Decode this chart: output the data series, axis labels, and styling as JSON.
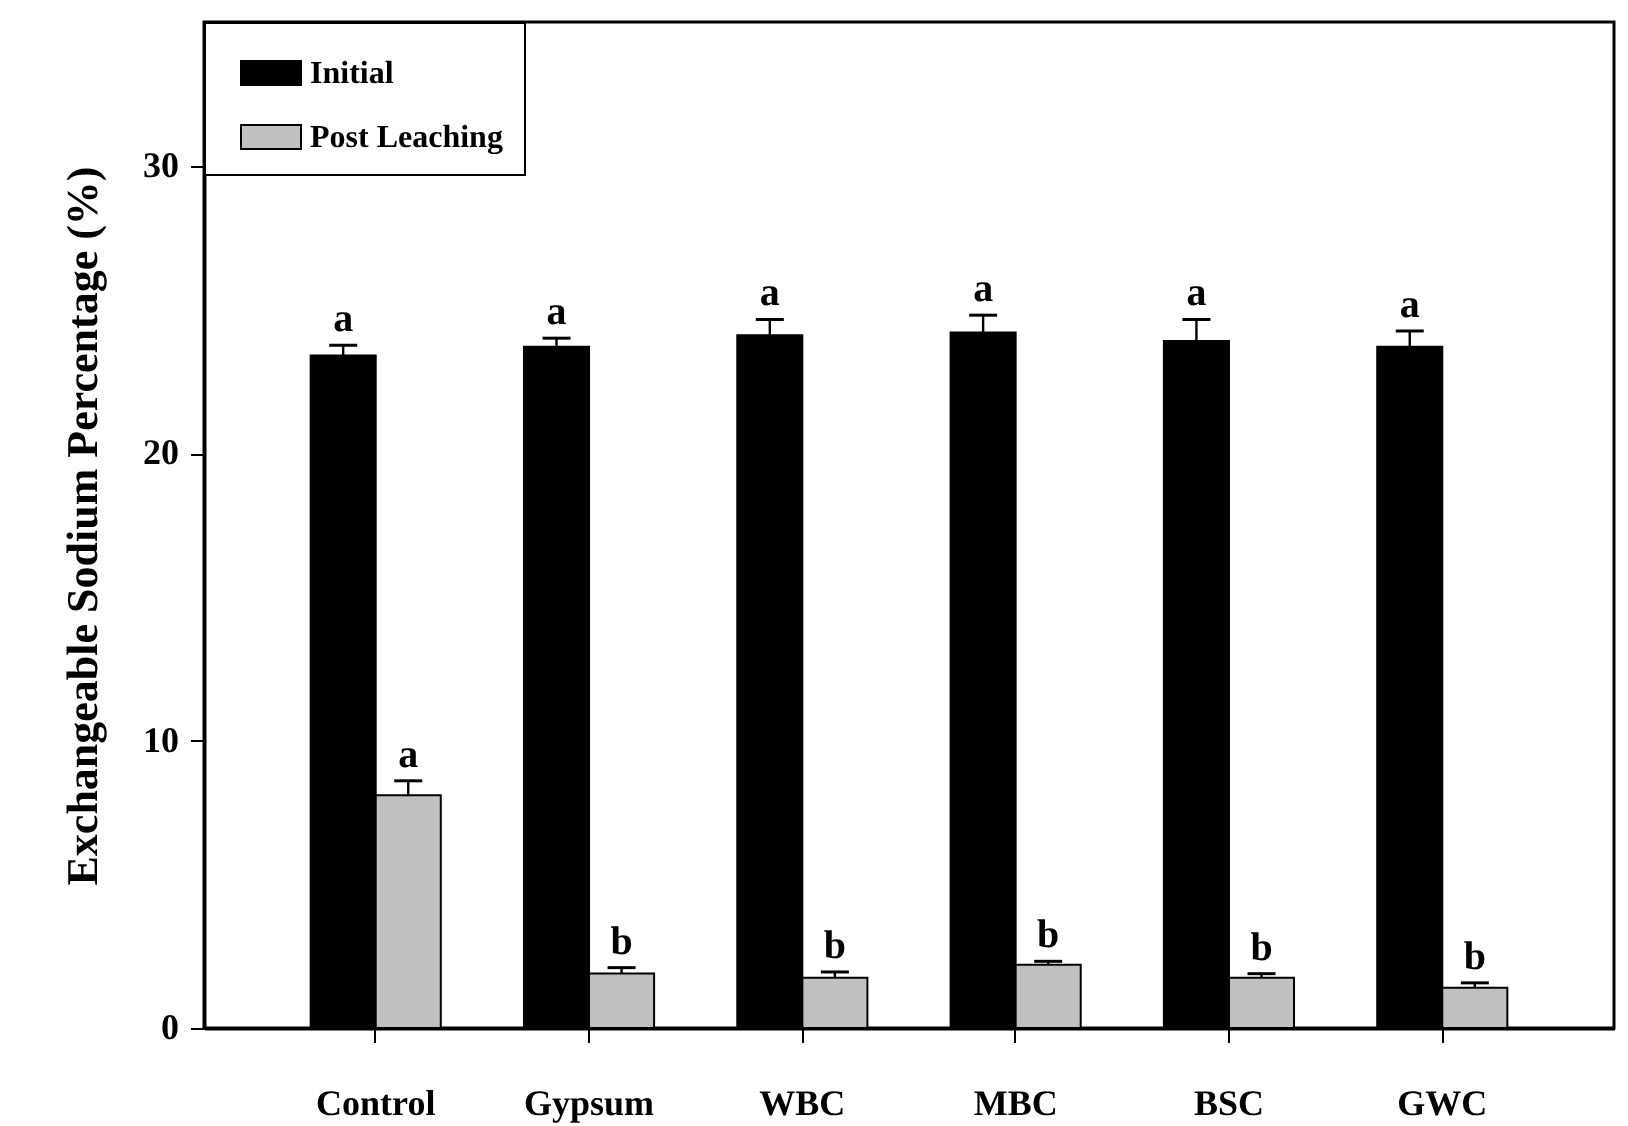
{
  "chart_data": {
    "type": "bar",
    "ylabel": "Exchangeable Sodium Percentage (%)",
    "categories": [
      "Control",
      "Gypsum",
      "WBC",
      "MBC",
      "BSC",
      "GWC"
    ],
    "series": [
      {
        "name": "Initial",
        "color": "#000000",
        "values": [
          23.4,
          23.7,
          24.1,
          24.2,
          23.9,
          23.7
        ],
        "errors": [
          0.35,
          0.3,
          0.55,
          0.6,
          0.75,
          0.55
        ],
        "value_labels": [
          "a",
          "a",
          "a",
          "a",
          "a",
          "a"
        ]
      },
      {
        "name": "Post Leaching",
        "color": "#c0c0c0",
        "values": [
          8.1,
          1.9,
          1.75,
          2.2,
          1.75,
          1.4
        ],
        "errors": [
          0.5,
          0.2,
          0.2,
          0.12,
          0.14,
          0.17
        ],
        "value_labels": [
          "a",
          "b",
          "b",
          "b",
          "b",
          "b"
        ]
      }
    ],
    "ylim": [
      0,
      35
    ],
    "yticks": [
      0,
      10,
      20,
      30
    ],
    "legend": "top left"
  }
}
